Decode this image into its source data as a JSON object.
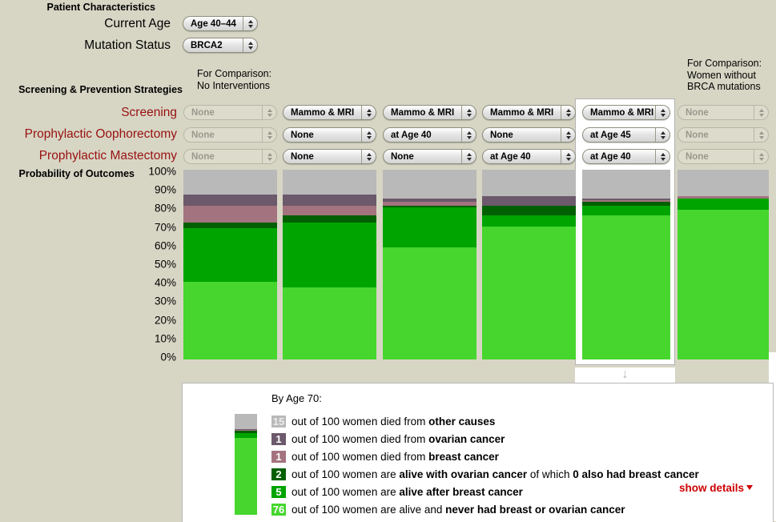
{
  "colors": {
    "background": "#d7d6c5",
    "died_other": "#b9b9b9",
    "died_ovarian": "#6c596b",
    "died_breast": "#a3737f",
    "alive_ovarian": "#005f00",
    "alive_breast": "#00a400",
    "never_cancer": "#46d62e",
    "row_label_red": "#991111",
    "link_red": "#cc0000"
  },
  "patient": {
    "section_title": "Patient Characteristics",
    "fields": [
      {
        "label": "Current Age",
        "value": "Age 40–44"
      },
      {
        "label": "Mutation Status",
        "value": "BRCA2"
      }
    ]
  },
  "strategies": {
    "section_title": "Screening & Prevention Strategies",
    "row_labels": [
      "Screening",
      "Prophylactic Oophorectomy",
      "Prophylactic Mastectomy"
    ]
  },
  "comparison_left_lines": [
    "For Comparison:",
    "No Interventions"
  ],
  "comparison_right_lines": [
    "For Comparison:",
    "Women without",
    "BRCA mutations"
  ],
  "probability_label": "Probability of Outcomes",
  "columns": [
    {
      "selected": false,
      "disabled": true,
      "screening": "None",
      "oophorectomy": "None",
      "mastectomy": "None"
    },
    {
      "selected": false,
      "disabled": false,
      "screening": "Mammo & MRI",
      "oophorectomy": "None",
      "mastectomy": "None"
    },
    {
      "selected": false,
      "disabled": false,
      "screening": "Mammo & MRI",
      "oophorectomy": "at Age 40",
      "mastectomy": "None"
    },
    {
      "selected": false,
      "disabled": false,
      "screening": "Mammo & MRI",
      "oophorectomy": "None",
      "mastectomy": "at Age 40"
    },
    {
      "selected": true,
      "disabled": false,
      "screening": "Mammo & MRI",
      "oophorectomy": "at Age 45",
      "mastectomy": "at Age 40"
    },
    {
      "selected": false,
      "disabled": true,
      "screening": "None",
      "oophorectomy": "None",
      "mastectomy": "None"
    }
  ],
  "chart_data": {
    "type": "bar",
    "variant": "stacked-percent-columns",
    "title": "Probability of Outcomes",
    "ylabel": "Probability of Outcomes",
    "ylim": [
      0,
      100
    ],
    "yticks": [
      "100%",
      "90%",
      "80%",
      "70%",
      "60%",
      "50%",
      "40%",
      "30%",
      "20%",
      "10%",
      "0%"
    ],
    "categories": [
      "No Interventions",
      "Mammo & MRI",
      "Mammo & MRI + Oophorectomy at Age 40",
      "Mammo & MRI + Mastectomy at Age 40",
      "Mammo & MRI + Oophorectomy at Age 45 + Mastectomy at Age 40 (selected)",
      "Women without BRCA mutations"
    ],
    "segments_bottom_to_top": [
      "never_cancer",
      "alive_breast",
      "alive_ovarian",
      "died_breast",
      "died_ovarian",
      "died_other"
    ],
    "segment_labels": {
      "never_cancer": "alive and never had breast or ovarian cancer",
      "alive_breast": "alive after breast cancer",
      "alive_ovarian": "alive with ovarian cancer",
      "died_breast": "died from breast cancer",
      "died_ovarian": "died from ovarian cancer",
      "died_other": "died from other causes"
    },
    "series": [
      {
        "name": "never_cancer",
        "values": [
          41,
          38,
          59,
          70,
          76,
          79
        ]
      },
      {
        "name": "alive_breast",
        "values": [
          28,
          34,
          21,
          6,
          5,
          6
        ]
      },
      {
        "name": "alive_ovarian",
        "values": [
          3,
          4,
          1,
          5,
          2,
          0
        ]
      },
      {
        "name": "died_breast",
        "values": [
          9,
          5,
          2,
          0,
          1,
          1
        ]
      },
      {
        "name": "died_ovarian",
        "values": [
          6,
          6,
          2,
          5,
          1,
          0
        ]
      },
      {
        "name": "died_other",
        "values": [
          13,
          13,
          15,
          14,
          15,
          14
        ]
      }
    ],
    "selected_column_index": 4,
    "legend_position": "bottom"
  },
  "legend": {
    "title": "By Age 70:",
    "rows": [
      {
        "value": "15",
        "color_key": "died_other",
        "num_color": "#ececec",
        "parts": [
          {
            "t": "out of 100 women died from ",
            "b": false
          },
          {
            "t": "other causes",
            "b": true
          }
        ]
      },
      {
        "value": "1",
        "color_key": "died_ovarian",
        "num_color": "#ffffff",
        "parts": [
          {
            "t": "out of 100 women died from ",
            "b": false
          },
          {
            "t": "ovarian cancer",
            "b": true
          }
        ]
      },
      {
        "value": "1",
        "color_key": "died_breast",
        "num_color": "#ffffff",
        "parts": [
          {
            "t": "out of 100 women died from ",
            "b": false
          },
          {
            "t": "breast cancer",
            "b": true
          }
        ]
      },
      {
        "value": "2",
        "color_key": "alive_ovarian",
        "num_color": "#ffffff",
        "parts": [
          {
            "t": "out of 100 women are ",
            "b": false
          },
          {
            "t": "alive with ovarian cancer",
            "b": true
          },
          {
            "t": " of which ",
            "b": false
          },
          {
            "t": "0 also had breast cancer",
            "b": true
          }
        ]
      },
      {
        "value": "5",
        "color_key": "alive_breast",
        "num_color": "#ffffff",
        "parts": [
          {
            "t": "out of 100 women are ",
            "b": false
          },
          {
            "t": "alive after breast cancer",
            "b": true
          }
        ]
      },
      {
        "value": "76",
        "color_key": "never_cancer",
        "num_color": "#ffffff",
        "parts": [
          {
            "t": "out of 100 women are alive and ",
            "b": false
          },
          {
            "t": "never had breast or ovarian cancer",
            "b": true
          }
        ]
      }
    ],
    "show_details_label": "show details"
  },
  "misc": {
    "down_arrow": "↓"
  }
}
